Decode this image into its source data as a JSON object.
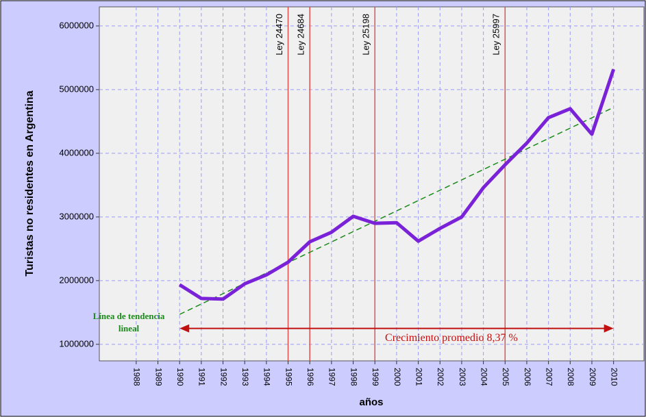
{
  "chart_data": {
    "type": "line",
    "ylabel": "Turistas no residentes en Argentina",
    "xlabel": "años",
    "x": [
      1990,
      1991,
      1992,
      1993,
      1994,
      1995,
      1996,
      1997,
      1998,
      1999,
      2000,
      2001,
      2002,
      2003,
      2004,
      2005,
      2006,
      2007,
      2008,
      2009,
      2010
    ],
    "series": [
      {
        "color": "#7a22d8",
        "values": [
          1935000,
          1720000,
          1710000,
          1950000,
          2090000,
          2290000,
          2610000,
          2760000,
          3010000,
          2900000,
          2910000,
          2620000,
          2820000,
          3000000,
          3460000,
          3820000,
          4160000,
          4560000,
          4700000,
          4300000,
          5320000
        ]
      }
    ],
    "trend": {
      "name": "Línea de tendencia lineal",
      "color": "#1a8a1a",
      "x": [
        1990,
        2010
      ],
      "values": [
        1470000,
        4720000
      ]
    },
    "vlines": [
      {
        "x": 1995,
        "label": "Ley  24470"
      },
      {
        "x": 1996,
        "label": "Ley  24684"
      },
      {
        "x": 1999,
        "label": "Ley 25198"
      },
      {
        "x": 2005,
        "label": "Ley 25997"
      }
    ],
    "vline_color": "#e05050",
    "annotation": {
      "text": "Crecimiento promedio 8,37 %",
      "x": [
        1990,
        2010
      ],
      "y": 1250000,
      "color": "#c01010"
    },
    "xlim": [
      1986.3,
      2011.4
    ],
    "xticks": [
      1988,
      1989,
      1990,
      1991,
      1992,
      1993,
      1994,
      1995,
      1996,
      1997,
      1998,
      1999,
      2000,
      2001,
      2002,
      2003,
      2004,
      2005,
      2006,
      2007,
      2008,
      2009,
      2010
    ],
    "ylim": [
      740000,
      6300000
    ],
    "yticks": [
      1000000,
      2000000,
      3000000,
      4000000,
      5000000,
      6000000
    ],
    "grid": true
  }
}
